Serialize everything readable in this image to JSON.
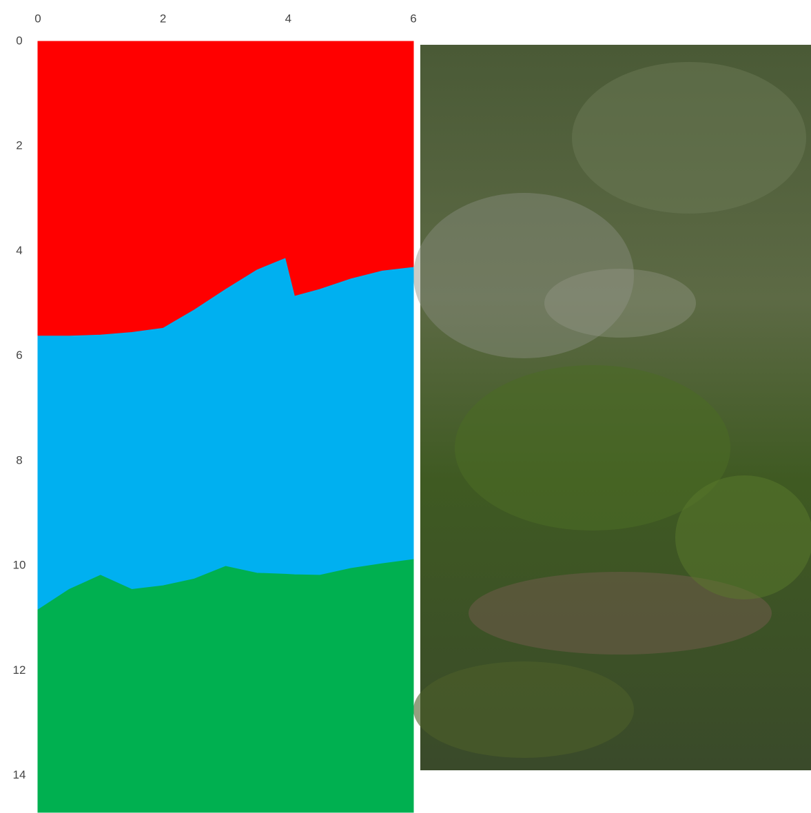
{
  "chart_data": {
    "type": "area",
    "stacked": true,
    "y_inverted": true,
    "x": [
      0,
      0.5,
      1,
      1.5,
      2,
      2.5,
      3,
      3.5,
      3.95,
      4.1,
      4.5,
      5,
      5.5,
      6
    ],
    "series": [
      {
        "color": "#ff0000",
        "values": [
          5.62,
          5.62,
          5.6,
          5.55,
          5.47,
          5.12,
          4.73,
          4.36,
          4.14,
          4.86,
          4.73,
          4.53,
          4.38,
          4.31
        ]
      },
      {
        "color": "#00b0f0",
        "values": [
          5.22,
          4.83,
          4.58,
          4.9,
          4.91,
          5.13,
          5.28,
          5.78,
          6.02,
          5.31,
          5.45,
          5.52,
          5.58,
          5.57
        ]
      },
      {
        "color": "#00b050",
        "values": [
          3.86,
          4.25,
          4.52,
          4.25,
          4.32,
          4.45,
          4.69,
          4.56,
          4.54,
          4.53,
          4.52,
          4.65,
          4.74,
          4.82
        ]
      }
    ],
    "xlim": [
      0,
      6
    ],
    "xticks": [
      0,
      2,
      4,
      6
    ],
    "ylim": [
      0,
      14.7
    ],
    "yticks": [
      0,
      2,
      4,
      6,
      8,
      10,
      12,
      14
    ]
  }
}
